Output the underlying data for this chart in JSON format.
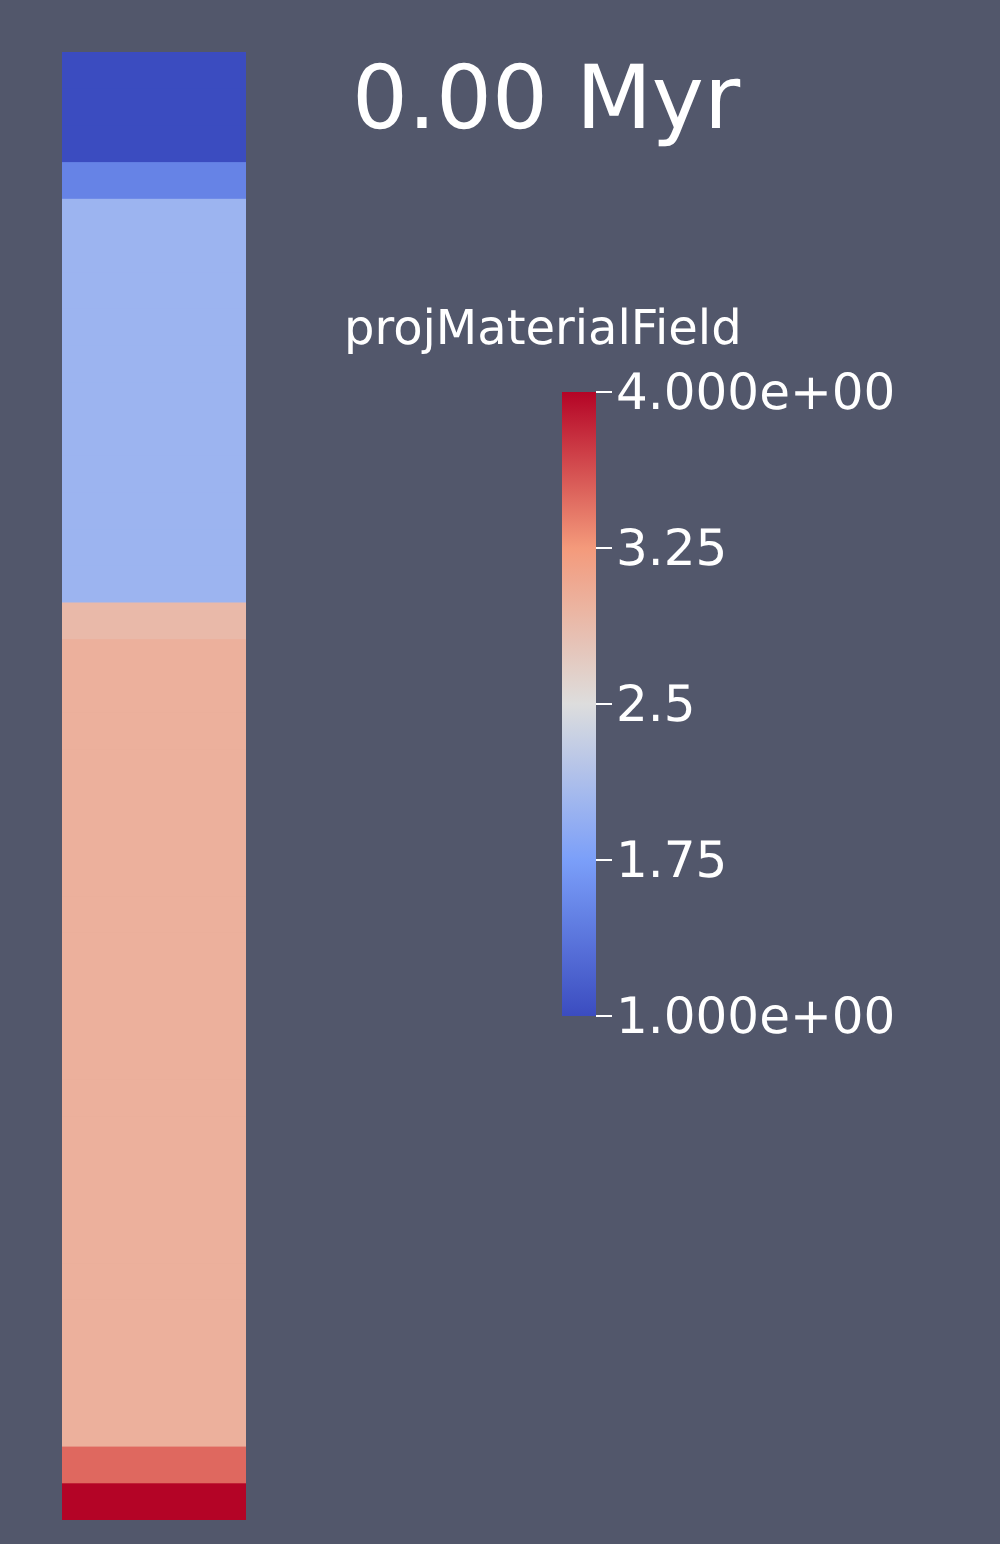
{
  "chart_data": {
    "type": "heatmap",
    "title": "0.00 Myr",
    "clabel": "projMaterialField",
    "categories": [
      null
    ],
    "y_categories": [
      null,
      null,
      null,
      null,
      null,
      null,
      null,
      null,
      null,
      null,
      null,
      null,
      null,
      null,
      null,
      null,
      null,
      null,
      null,
      null,
      null,
      null,
      null,
      null,
      null,
      null,
      null,
      null,
      null,
      null,
      null,
      null,
      null,
      null,
      null,
      null,
      null,
      null,
      null,
      null
    ],
    "cells": [
      [
        1
      ],
      [
        1
      ],
      [
        1
      ],
      [
        1.5
      ],
      [
        2
      ],
      [
        2
      ],
      [
        2
      ],
      [
        2
      ],
      [
        2
      ],
      [
        2
      ],
      [
        2
      ],
      [
        2
      ],
      [
        2
      ],
      [
        2
      ],
      [
        2
      ],
      [
        2.9
      ],
      [
        3
      ],
      [
        3
      ],
      [
        3
      ],
      [
        3
      ],
      [
        3
      ],
      [
        3
      ],
      [
        3
      ],
      [
        3
      ],
      [
        3
      ],
      [
        3
      ],
      [
        3
      ],
      [
        3
      ],
      [
        3
      ],
      [
        3
      ],
      [
        3
      ],
      [
        3
      ],
      [
        3
      ],
      [
        3
      ],
      [
        3
      ],
      [
        3
      ],
      [
        3
      ],
      [
        3
      ],
      [
        3.5
      ],
      [
        4
      ]
    ],
    "clim": [
      1,
      4
    ],
    "cticks": [
      {
        "value": 4,
        "label": "4.000e+00"
      },
      3.25,
      2.5,
      1.75,
      {
        "value": 1,
        "label": "1.000e+00"
      }
    ]
  }
}
